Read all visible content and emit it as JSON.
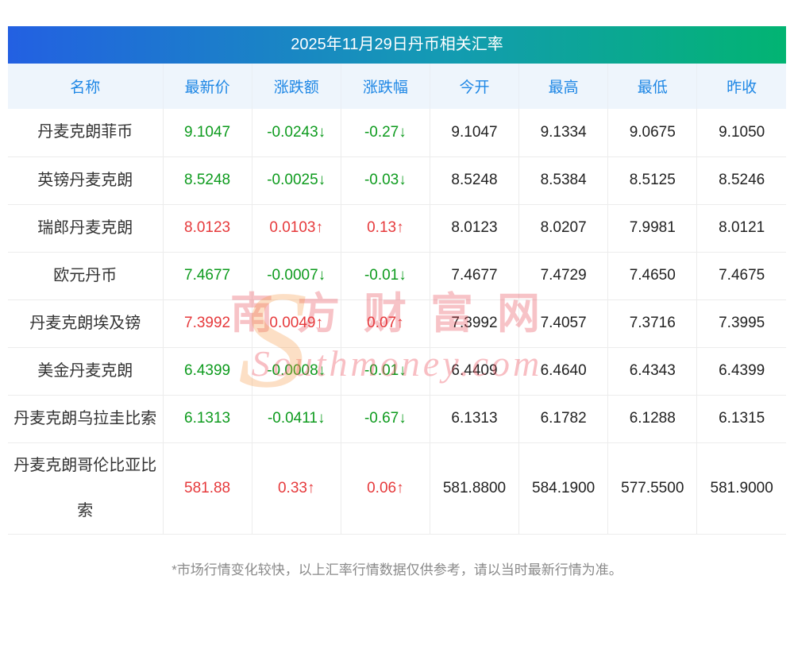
{
  "title": "2025年11月29日丹币相关汇率",
  "table": {
    "headers": [
      "名称",
      "最新价",
      "涨跌额",
      "涨跌幅",
      "今开",
      "最高",
      "最低",
      "昨收"
    ],
    "rows": [
      {
        "name": "丹麦克朗菲币",
        "last": "9.1047",
        "change": "-0.0243↓",
        "pct": "-0.27↓",
        "open": "9.1047",
        "high": "9.1334",
        "low": "9.0675",
        "prev": "9.1050",
        "trend": "down"
      },
      {
        "name": "英镑丹麦克朗",
        "last": "8.5248",
        "change": "-0.0025↓",
        "pct": "-0.03↓",
        "open": "8.5248",
        "high": "8.5384",
        "low": "8.5125",
        "prev": "8.5246",
        "trend": "down"
      },
      {
        "name": "瑞郎丹麦克朗",
        "last": "8.0123",
        "change": "0.0103↑",
        "pct": "0.13↑",
        "open": "8.0123",
        "high": "8.0207",
        "low": "7.9981",
        "prev": "8.0121",
        "trend": "up"
      },
      {
        "name": "欧元丹币",
        "last": "7.4677",
        "change": "-0.0007↓",
        "pct": "-0.01↓",
        "open": "7.4677",
        "high": "7.4729",
        "low": "7.4650",
        "prev": "7.4675",
        "trend": "down"
      },
      {
        "name": "丹麦克朗埃及镑",
        "last": "7.3992",
        "change": "0.0049↑",
        "pct": "0.07↑",
        "open": "7.3992",
        "high": "7.4057",
        "low": "7.3716",
        "prev": "7.3995",
        "trend": "up"
      },
      {
        "name": "美金丹麦克朗",
        "last": "6.4399",
        "change": "-0.0008↓",
        "pct": "-0.01↓",
        "open": "6.4409",
        "high": "6.4640",
        "low": "6.4343",
        "prev": "6.4399",
        "trend": "down"
      },
      {
        "name": "丹麦克朗乌拉圭比索",
        "last": "6.1313",
        "change": "-0.0411↓",
        "pct": "-0.67↓",
        "open": "6.1313",
        "high": "6.1782",
        "low": "6.1288",
        "prev": "6.1315",
        "trend": "down"
      },
      {
        "name": "丹麦克朗哥伦比亚比索",
        "last": "581.88",
        "change": "0.33↑",
        "pct": "0.06↑",
        "open": "581.8800",
        "high": "584.1900",
        "low": "577.5500",
        "prev": "581.9000",
        "trend": "up"
      }
    ]
  },
  "footnote": "*市场行情变化较快，以上汇率行情数据仅供参考，请以当时最新行情为准。",
  "watermark": {
    "s": "S",
    "cn": "南方财富网",
    "en": "Southmoney.com"
  },
  "colors": {
    "up": "#e63a3c",
    "down": "#0e9b1e",
    "header_text": "#1e87e5",
    "header_bg": "#eef5fc",
    "title_gradient_left": "#2360e2",
    "title_gradient_right": "#02b472"
  }
}
